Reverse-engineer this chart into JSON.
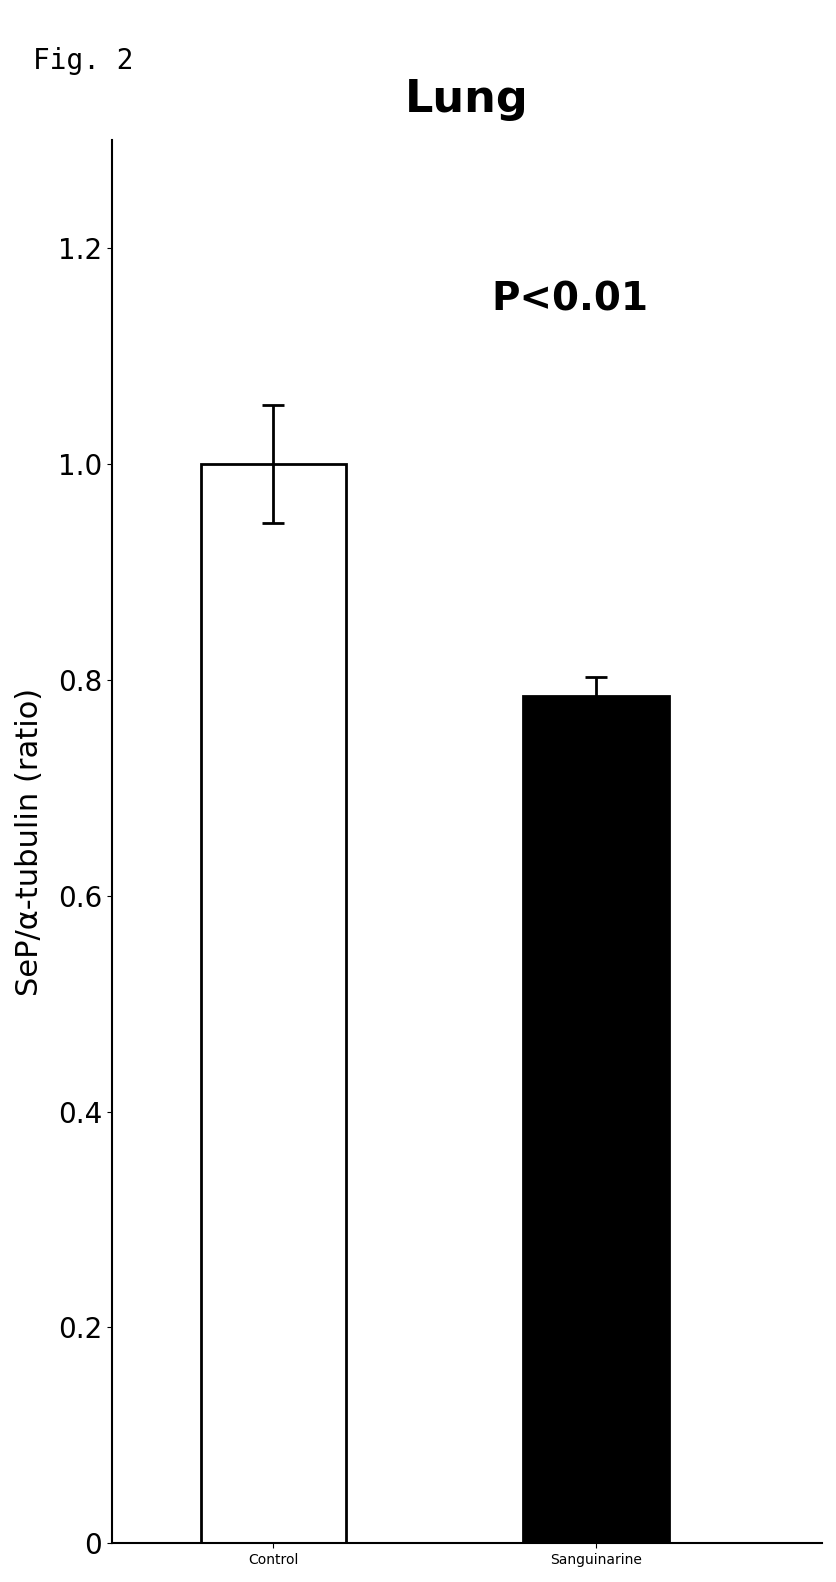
{
  "title": "Lung",
  "fig_label": "Fig. 2",
  "categories": [
    "Control",
    "Sanguinarine"
  ],
  "values": [
    1.0,
    0.785
  ],
  "errors": [
    0.055,
    0.018
  ],
  "bar_colors": [
    "#ffffff",
    "#000000"
  ],
  "bar_edgecolors": [
    "#000000",
    "#000000"
  ],
  "ylabel": "SeP/α-tubulin (ratio)",
  "ylim": [
    0,
    1.3
  ],
  "yticks": [
    0,
    0.2,
    0.4,
    0.6,
    0.8,
    1.0,
    1.2
  ],
  "annotation": "P<0.01",
  "annotation_fontsize": 28,
  "title_fontsize": 32,
  "ylabel_fontsize": 22,
  "tick_fontsize": 20,
  "xtick_fontsize": 26,
  "fig_label_fontsize": 20,
  "bar_width": 0.45,
  "background_color": "#ffffff"
}
